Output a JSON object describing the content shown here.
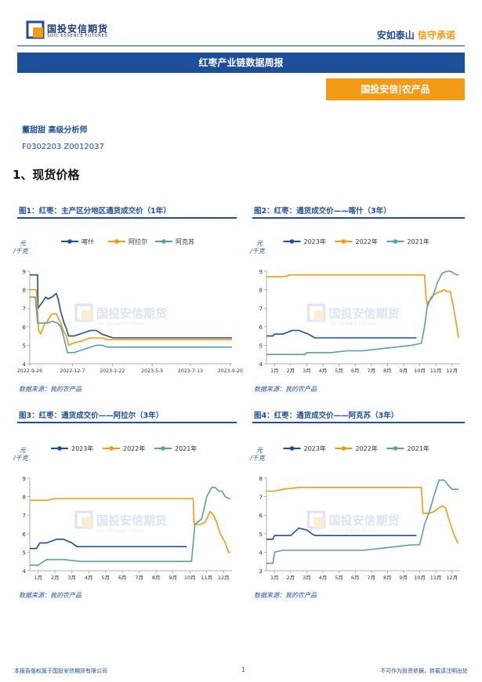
{
  "header": {
    "logo_text": "国投安信期货",
    "logo_sub": "SDIC ESSENCE FUTURES",
    "slogan_a": "安如泰山",
    "slogan_b": "信守承诺",
    "colors": {
      "brand_blue": "#1d4f9a",
      "brand_orange": "#f39a17"
    }
  },
  "banner": "红枣产业链数据周报",
  "tag": "国投安信|农产品",
  "author": "董甜甜 高级分析师",
  "cert": "F0302203 Z0012037",
  "section": "1、现货价格",
  "watermark": "国投安信期货",
  "watermark_sub": "SDIC ESSENCE FUTURES",
  "footer": {
    "left": "本报告版权属于国投安信期货有限公司",
    "page": "1",
    "right": "不可作为投资依据，转载请注明出处"
  },
  "charts": [
    {
      "title": "图1：红枣：主产区分地区通货成交价（1年）",
      "source": "数据来源：我的农产品",
      "ylabel": "元/千克"
    },
    {
      "title": "图2：红枣：通货成交价——喀什（3年）",
      "source": "数据来源：我的农产品",
      "ylabel": "元/千克"
    },
    {
      "title": "图3：红枣：通货成交价——阿拉尔（3年）",
      "source": "数据来源：我的农产品",
      "ylabel": "元/千克"
    },
    {
      "title": "图4：红枣：通货成交价——阿克苏（3年）",
      "source": "数据来源：我的农产品",
      "ylabel": "元/千克"
    }
  ],
  "chart_data": [
    {
      "type": "line",
      "ylim": [
        4,
        9
      ],
      "yticks": [
        4,
        5,
        6,
        7,
        8,
        9
      ],
      "xlim": [
        0,
        365
      ],
      "xticks": [
        0,
        77,
        149,
        221,
        290,
        362
      ],
      "xticklabels": [
        "2022-9-26",
        "2022-12-7",
        "2023-2-22",
        "2023-5-5",
        "2023-7-13",
        "2023-9-20"
      ],
      "legend": "top",
      "series": [
        {
          "name": "喀什",
          "color": "#1f4d96",
          "x": [
            0,
            14,
            15,
            22,
            29,
            33,
            40,
            48,
            52,
            56,
            62,
            66,
            70,
            75,
            80,
            90,
            100,
            110,
            120,
            130,
            140,
            150,
            365
          ],
          "y": [
            8.8,
            8.8,
            7.0,
            7.3,
            7.6,
            7.5,
            7.6,
            7.8,
            7.4,
            6.8,
            6.2,
            5.9,
            5.5,
            5.5,
            5.5,
            5.6,
            5.7,
            5.8,
            5.8,
            5.6,
            5.5,
            5.4,
            5.4
          ]
        },
        {
          "name": "阿拉尔",
          "color": "#f19a12",
          "x": [
            0,
            12,
            16,
            20,
            26,
            32,
            40,
            48,
            54,
            58,
            62,
            66,
            70,
            78,
            90,
            100,
            110,
            120,
            130,
            140,
            150,
            365
          ],
          "y": [
            8.0,
            8.0,
            5.8,
            5.6,
            6.1,
            6.3,
            6.7,
            6.7,
            6.3,
            6.0,
            5.7,
            5.5,
            5.0,
            5.1,
            5.2,
            5.3,
            5.4,
            5.4,
            5.4,
            5.3,
            5.3,
            5.3
          ]
        },
        {
          "name": "阿克苏",
          "color": "#5b9ea6",
          "x": [
            0,
            10,
            14,
            18,
            24,
            32,
            40,
            50,
            56,
            60,
            64,
            68,
            72,
            80,
            90,
            100,
            110,
            120,
            130,
            140,
            150,
            365
          ],
          "y": [
            7.6,
            7.6,
            6.2,
            6.2,
            6.2,
            6.2,
            6.3,
            6.2,
            6.0,
            5.6,
            5.1,
            4.6,
            4.6,
            4.6,
            4.7,
            4.8,
            4.9,
            5.0,
            5.0,
            4.9,
            4.9,
            4.9
          ]
        }
      ]
    },
    {
      "type": "line",
      "ylim": [
        4,
        9
      ],
      "yticks": [
        4,
        5,
        6,
        7,
        8,
        9
      ],
      "xlim": [
        0,
        12
      ],
      "xticks": [
        0.5,
        1.5,
        2.5,
        3.5,
        4.5,
        5.5,
        6.5,
        7.5,
        8.5,
        9.5,
        10.5,
        11.5
      ],
      "xticklabels": [
        "1月",
        "2月",
        "3月",
        "4月",
        "5月",
        "6月",
        "7月",
        "8月",
        "9月",
        "10月",
        "11月",
        "12月"
      ],
      "legend": "top",
      "series": [
        {
          "name": "2023年",
          "color": "#1f4d96",
          "x": [
            0,
            0.4,
            0.5,
            1.0,
            1.6,
            2.0,
            2.6,
            3.0,
            9.3
          ],
          "y": [
            5.5,
            5.5,
            5.6,
            5.6,
            5.8,
            5.8,
            5.6,
            5.4,
            5.4
          ]
        },
        {
          "name": "2022年",
          "color": "#f19a12",
          "x": [
            0,
            1.0,
            1.5,
            9.8,
            9.9,
            10.0,
            10.2,
            10.5,
            10.8,
            11.0,
            11.2,
            11.4,
            11.6,
            11.8,
            11.9
          ],
          "y": [
            8.7,
            8.7,
            8.8,
            8.8,
            7.5,
            7.1,
            7.6,
            7.8,
            7.9,
            8.0,
            7.9,
            7.9,
            7.0,
            6.0,
            5.4
          ]
        },
        {
          "name": "2021年",
          "color": "#5b9ea6",
          "x": [
            0,
            2.4,
            2.5,
            4.0,
            5.0,
            6.0,
            7.0,
            8.0,
            9.0,
            9.6,
            9.8,
            10.0,
            10.3,
            10.6,
            10.9,
            11.2,
            11.4,
            11.6,
            11.8,
            11.9
          ],
          "y": [
            4.5,
            4.5,
            4.6,
            4.6,
            4.7,
            4.7,
            4.8,
            4.9,
            5.0,
            5.1,
            6.0,
            7.3,
            7.6,
            8.4,
            8.9,
            9.0,
            9.0,
            8.9,
            8.8,
            8.8
          ]
        }
      ]
    },
    {
      "type": "line",
      "ylim": [
        4,
        9
      ],
      "yticks": [
        4,
        5,
        6,
        7,
        8,
        9
      ],
      "xlim": [
        0,
        12
      ],
      "xticks": [
        0.5,
        1.5,
        2.5,
        3.5,
        4.5,
        5.5,
        6.5,
        7.5,
        8.5,
        9.5,
        10.5,
        11.5
      ],
      "xticklabels": [
        "1月",
        "2月",
        "3月",
        "4月",
        "5月",
        "6月",
        "7月",
        "8月",
        "9月",
        "10月",
        "11月",
        "12月"
      ],
      "legend": "top",
      "series": [
        {
          "name": "2023年",
          "color": "#1f4d96",
          "x": [
            0,
            0.4,
            0.6,
            1.0,
            1.6,
            2.0,
            2.5,
            2.8,
            3.0,
            9.3
          ],
          "y": [
            5.2,
            5.2,
            5.5,
            5.5,
            5.7,
            5.7,
            5.5,
            5.3,
            5.3,
            5.3
          ]
        },
        {
          "name": "2022年",
          "color": "#f19a12",
          "x": [
            0,
            1.0,
            1.5,
            9.7,
            9.75,
            10.1,
            10.4,
            10.7,
            10.9,
            11.1,
            11.3,
            11.6,
            11.8,
            11.9
          ],
          "y": [
            7.8,
            7.8,
            7.9,
            7.9,
            6.5,
            6.5,
            6.6,
            7.2,
            7.0,
            6.6,
            6.0,
            5.5,
            5.0,
            5.0
          ]
        },
        {
          "name": "2021年",
          "color": "#5b9ea6",
          "x": [
            0,
            0.5,
            1.0,
            2.0,
            3.0,
            4.0,
            5.0,
            6.0,
            7.0,
            8.0,
            9.0,
            9.6,
            9.8,
            10.2,
            10.5,
            10.8,
            11.0,
            11.2,
            11.4,
            11.6,
            11.8,
            11.9
          ],
          "y": [
            4.3,
            4.3,
            4.6,
            4.6,
            4.5,
            4.5,
            4.5,
            4.5,
            4.5,
            4.5,
            4.5,
            4.5,
            6.5,
            6.8,
            8.0,
            8.5,
            8.5,
            8.3,
            8.3,
            8.0,
            7.9,
            7.9
          ]
        }
      ]
    },
    {
      "type": "line",
      "ylim": [
        3,
        8
      ],
      "yticks": [
        3,
        4,
        5,
        6,
        7,
        8
      ],
      "xlim": [
        0,
        12
      ],
      "xticks": [
        0.5,
        1.5,
        2.5,
        3.5,
        4.5,
        5.5,
        6.5,
        7.5,
        8.5,
        9.5,
        10.5,
        11.5
      ],
      "xticklabels": [
        "1月",
        "2月",
        "3月",
        "4月",
        "5月",
        "6月",
        "7月",
        "8月",
        "9月",
        "10月",
        "11月",
        "12月"
      ],
      "legend": "top",
      "series": [
        {
          "name": "2023年",
          "color": "#1f4d96",
          "x": [
            0,
            0.4,
            0.5,
            1.5,
            2.0,
            2.5,
            2.8,
            3.0,
            3.5,
            9.3
          ],
          "y": [
            4.7,
            4.7,
            4.9,
            4.9,
            5.3,
            5.2,
            5.0,
            4.9,
            4.9,
            4.9
          ]
        },
        {
          "name": "2022年",
          "color": "#f19a12",
          "x": [
            0,
            0.5,
            1.0,
            2.0,
            3.0,
            9.6,
            9.7,
            10.1,
            10.4,
            10.7,
            10.9,
            11.1,
            11.3,
            11.6,
            11.8,
            11.9
          ],
          "y": [
            7.3,
            7.3,
            7.4,
            7.5,
            7.5,
            7.5,
            6.1,
            6.1,
            6.2,
            6.4,
            6.5,
            6.4,
            5.8,
            5.0,
            4.6,
            4.5
          ]
        },
        {
          "name": "2021年",
          "color": "#5b9ea6",
          "x": [
            0,
            0.4,
            0.5,
            1.0,
            2.0,
            3.0,
            4.0,
            5.0,
            6.0,
            7.0,
            8.0,
            9.0,
            9.5,
            9.8,
            10.1,
            10.4,
            10.7,
            11.0,
            11.2,
            11.5,
            11.8,
            11.9
          ],
          "y": [
            3.4,
            3.4,
            4.0,
            4.1,
            4.1,
            4.1,
            4.1,
            4.1,
            4.1,
            4.2,
            4.3,
            4.4,
            4.4,
            5.5,
            6.2,
            7.1,
            7.9,
            7.9,
            7.7,
            7.4,
            7.4,
            7.4
          ]
        }
      ]
    }
  ]
}
